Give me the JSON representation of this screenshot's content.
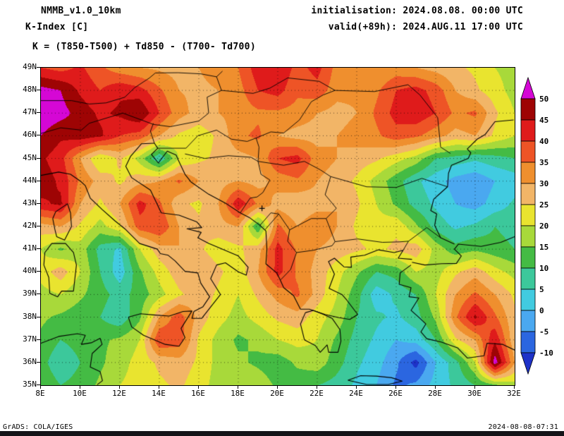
{
  "header": {
    "model": "NMMB_v1.0_10km",
    "variable": "K-Index [C]",
    "init_line": "initialisation: 2024.08.08. 00:00 UTC",
    "valid_line": "valid(+89h): 2024.AUG.11 17:00 UTC",
    "formula": "K = (T850-T500) + Td850 - (T700- Td700)"
  },
  "footer": {
    "credit": "GrADS: COLA/IGES",
    "timestamp": "2024-08-08-07:31"
  },
  "chart_data": {
    "type": "heatmap",
    "title": "K-Index [C]",
    "units": "C",
    "lon_range": [
      8,
      32
    ],
    "lat_range": [
      35,
      49
    ],
    "lat_ticks": [
      "49N",
      "48N",
      "47N",
      "46N",
      "45N",
      "44N",
      "43N",
      "42N",
      "41N",
      "40N",
      "39N",
      "38N",
      "37N",
      "36N",
      "35N"
    ],
    "lon_ticks": [
      "8E",
      "10E",
      "12E",
      "14E",
      "16E",
      "18E",
      "20E",
      "22E",
      "24E",
      "26E",
      "28E",
      "30E",
      "32E"
    ],
    "levels": [
      -10,
      -5,
      0,
      5,
      10,
      15,
      20,
      25,
      30,
      35,
      40,
      45,
      50
    ],
    "colorbar_labels": [
      "50",
      "45",
      "40",
      "35",
      "30",
      "25",
      "20",
      "15",
      "10",
      "5",
      "0",
      "-5",
      "-10"
    ],
    "band_colors_low_to_high": [
      "#1e32c8",
      "#2b66e0",
      "#4aa8f0",
      "#41cbe0",
      "#3cc89b",
      "#44bb44",
      "#a8d93a",
      "#e9e42f",
      "#f2b567",
      "#ef8f2e",
      "#ee5426",
      "#df1b1b",
      "#9e0404",
      "#d507d5"
    ],
    "grid": {
      "lon_start": 8,
      "lon_step": 1,
      "lat_start": 49,
      "lat_step": -1,
      "values": [
        [
          40,
          38,
          41,
          36,
          32,
          30,
          29,
          28,
          30,
          32,
          35,
          43,
          45,
          38,
          42,
          33,
          30,
          30,
          32,
          30,
          28,
          26,
          24,
          20,
          18
        ],
        [
          52,
          50,
          44,
          40,
          44,
          42,
          36,
          30,
          29,
          30,
          33,
          40,
          42,
          36,
          38,
          32,
          31,
          34,
          40,
          42,
          38,
          30,
          26,
          22,
          18
        ],
        [
          54,
          52,
          48,
          44,
          46,
          50,
          40,
          32,
          28,
          30,
          32,
          34,
          34,
          33,
          30,
          28,
          30,
          36,
          42,
          44,
          40,
          34,
          36,
          26,
          20
        ],
        [
          50,
          46,
          48,
          46,
          40,
          38,
          30,
          24,
          22,
          26,
          34,
          36,
          30,
          28,
          28,
          30,
          32,
          34,
          38,
          36,
          32,
          28,
          30,
          24,
          20
        ],
        [
          46,
          42,
          30,
          20,
          26,
          18,
          5,
          20,
          24,
          26,
          28,
          30,
          40,
          42,
          32,
          30,
          28,
          26,
          22,
          18,
          10,
          8,
          6,
          8,
          10
        ],
        [
          48,
          44,
          34,
          28,
          24,
          28,
          30,
          36,
          30,
          28,
          30,
          28,
          32,
          34,
          30,
          28,
          24,
          18,
          12,
          6,
          2,
          -2,
          -4,
          0,
          2
        ],
        [
          44,
          46,
          30,
          24,
          30,
          42,
          36,
          26,
          24,
          30,
          44,
          34,
          28,
          26,
          28,
          30,
          26,
          20,
          14,
          8,
          4,
          0,
          -2,
          2,
          6
        ],
        [
          28,
          30,
          24,
          18,
          24,
          38,
          40,
          30,
          26,
          28,
          30,
          10,
          36,
          30,
          34,
          30,
          24,
          22,
          24,
          16,
          8,
          4,
          6,
          10,
          8
        ],
        [
          20,
          14,
          18,
          8,
          4,
          20,
          28,
          30,
          26,
          22,
          24,
          28,
          42,
          34,
          30,
          28,
          26,
          24,
          26,
          28,
          18,
          12,
          14,
          12,
          10
        ],
        [
          22,
          28,
          20,
          10,
          2,
          14,
          22,
          28,
          30,
          26,
          22,
          30,
          42,
          34,
          28,
          22,
          16,
          10,
          12,
          20,
          18,
          24,
          28,
          22,
          18
        ],
        [
          18,
          20,
          16,
          12,
          8,
          12,
          18,
          24,
          28,
          24,
          20,
          26,
          32,
          36,
          28,
          20,
          12,
          2,
          6,
          10,
          20,
          30,
          36,
          30,
          24
        ],
        [
          16,
          14,
          12,
          10,
          6,
          14,
          30,
          38,
          28,
          22,
          18,
          22,
          26,
          28,
          22,
          18,
          10,
          6,
          4,
          8,
          16,
          34,
          46,
          36,
          26
        ],
        [
          14,
          10,
          12,
          14,
          16,
          20,
          40,
          38,
          24,
          18,
          14,
          16,
          20,
          22,
          20,
          14,
          8,
          4,
          0,
          2,
          10,
          24,
          30,
          44,
          26
        ],
        [
          12,
          6,
          10,
          14,
          18,
          22,
          26,
          28,
          24,
          18,
          16,
          14,
          12,
          16,
          18,
          12,
          6,
          2,
          -4,
          -12,
          0,
          8,
          20,
          53,
          30
        ],
        [
          14,
          10,
          12,
          16,
          20,
          22,
          24,
          26,
          22,
          18,
          20,
          18,
          14,
          12,
          10,
          8,
          4,
          0,
          -6,
          -4,
          2,
          6,
          10,
          14,
          18
        ]
      ]
    },
    "legend_position": "right",
    "grid_lines": "dotted, 1 deg latitude / 2 deg longitude"
  }
}
